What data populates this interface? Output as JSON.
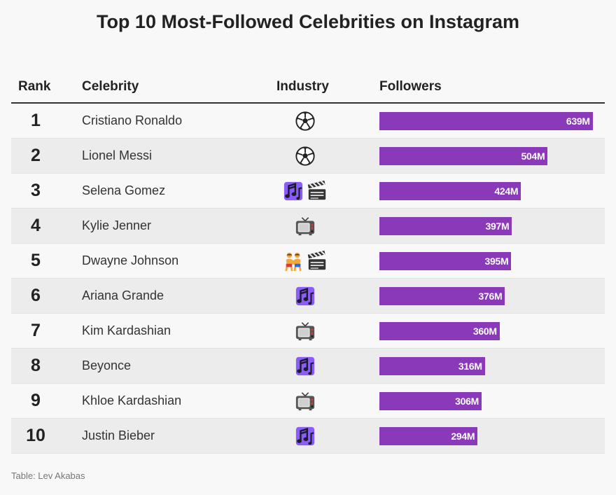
{
  "title": "Top 10 Most-Followed Celebrities on Instagram",
  "columns": {
    "rank": "Rank",
    "celebrity": "Celebrity",
    "industry": "Industry",
    "followers": "Followers"
  },
  "source": "Table: Lev Akabas",
  "colors": {
    "bar": "#8a3ab9",
    "text": "#222222",
    "alt_row": "#ececec"
  },
  "chart_data": {
    "type": "table",
    "title": "Top 10 Most-Followed Celebrities on Instagram",
    "unit": "M",
    "xlim": [
      0,
      650
    ],
    "rows": [
      {
        "rank": "1",
        "name": "Cristiano Ronaldo",
        "industry": [
          "soccer-ball-icon"
        ],
        "followers": 639,
        "label": "639M"
      },
      {
        "rank": "2",
        "name": "Lionel Messi",
        "industry": [
          "soccer-ball-icon"
        ],
        "followers": 504,
        "label": "504M"
      },
      {
        "rank": "3",
        "name": "Selena Gomez",
        "industry": [
          "music-notes-icon",
          "clapper-board-icon"
        ],
        "followers": 424,
        "label": "424M"
      },
      {
        "rank": "4",
        "name": "Kylie Jenner",
        "industry": [
          "television-icon"
        ],
        "followers": 397,
        "label": "397M"
      },
      {
        "rank": "5",
        "name": "Dwayne Johnson",
        "industry": [
          "wrestlers-icon",
          "clapper-board-icon"
        ],
        "followers": 395,
        "label": "395M"
      },
      {
        "rank": "6",
        "name": "Ariana Grande",
        "industry": [
          "music-notes-icon"
        ],
        "followers": 376,
        "label": "376M"
      },
      {
        "rank": "7",
        "name": "Kim Kardashian",
        "industry": [
          "television-icon"
        ],
        "followers": 360,
        "label": "360M"
      },
      {
        "rank": "8",
        "name": "Beyonce",
        "industry": [
          "music-notes-icon"
        ],
        "followers": 316,
        "label": "316M"
      },
      {
        "rank": "9",
        "name": "Khloe Kardashian",
        "industry": [
          "television-icon"
        ],
        "followers": 306,
        "label": "306M"
      },
      {
        "rank": "10",
        "name": "Justin Bieber",
        "industry": [
          "music-notes-icon"
        ],
        "followers": 294,
        "label": "294M"
      }
    ]
  }
}
